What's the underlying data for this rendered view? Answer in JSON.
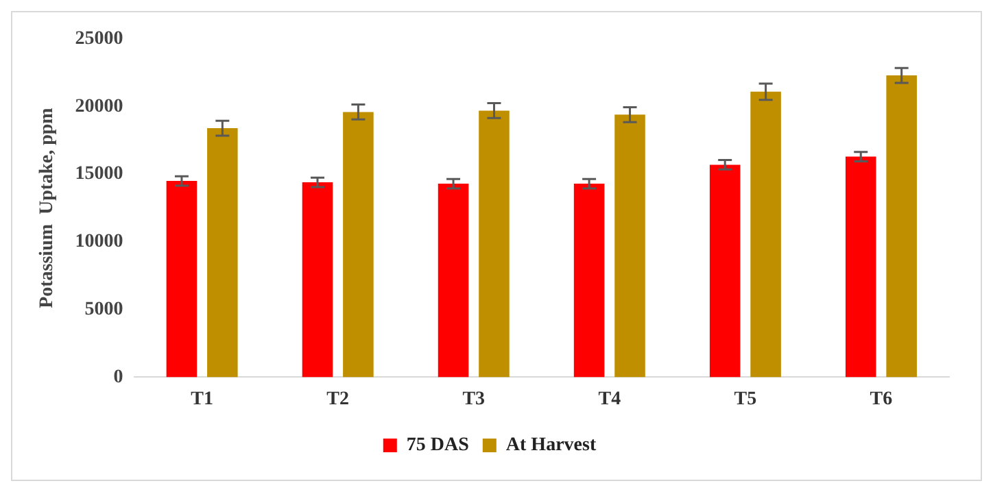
{
  "chart_data": {
    "type": "bar",
    "ylabel": "Potassium  Uptake, ppm",
    "categories": [
      "T1",
      "T2",
      "T3",
      "T4",
      "T5",
      "T6"
    ],
    "series": [
      {
        "name": "75 DAS",
        "color": "#ff0000",
        "values": [
          14500,
          14400,
          14300,
          14300,
          15700,
          16300
        ],
        "errors": [
          350,
          350,
          350,
          350,
          350,
          350
        ]
      },
      {
        "name": "At Harvest",
        "color": "#bf8f00",
        "values": [
          18400,
          19600,
          19700,
          19400,
          21100,
          22300
        ],
        "errors": [
          550,
          550,
          550,
          550,
          600,
          550
        ]
      }
    ],
    "ylim": [
      0,
      25000
    ],
    "yticks": [
      0,
      5000,
      10000,
      15000,
      20000,
      25000
    ],
    "legend": "bottom"
  }
}
